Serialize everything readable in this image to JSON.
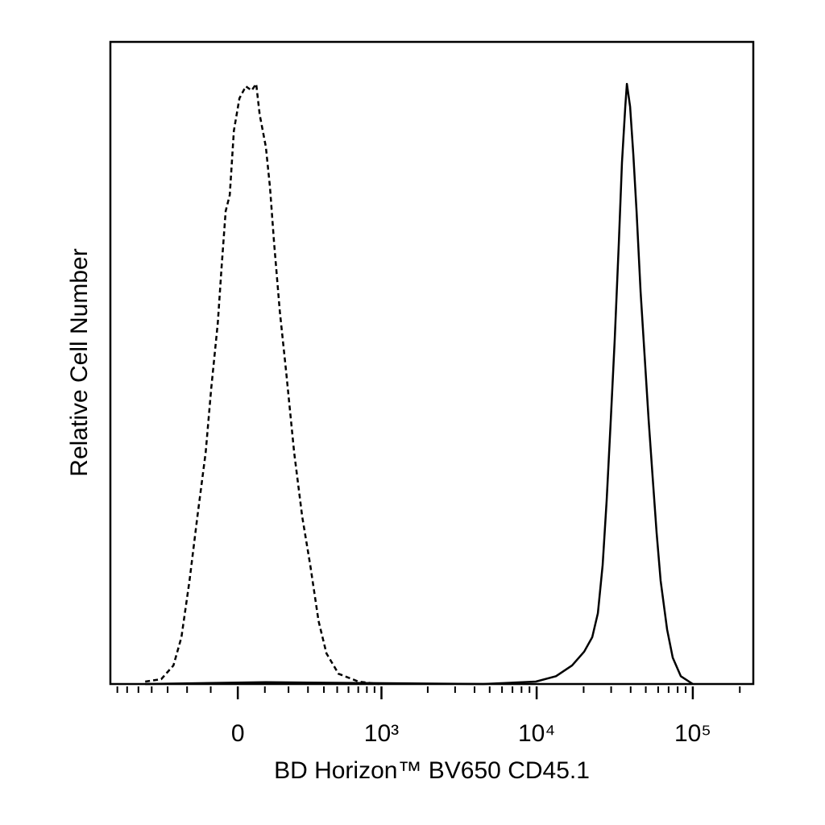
{
  "chart_data": {
    "type": "line",
    "xlabel": "BD Horizon™ BV650 CD45.1",
    "ylabel": "Relative Cell Number",
    "xscale": "biexponential",
    "xlim": [
      -780,
      244000
    ],
    "ylim": [
      0,
      107
    ],
    "xticks": [
      {
        "value": 0,
        "label": "0"
      },
      {
        "value": 1000,
        "label": "10³"
      },
      {
        "value": 10000,
        "label": "10⁴"
      },
      {
        "value": 100000,
        "label": "10⁵"
      }
    ],
    "xminorticks": [
      -700,
      -600,
      -500,
      -400,
      -300,
      -200,
      -100,
      100,
      200,
      300,
      400,
      500,
      600,
      700,
      800,
      900,
      2000,
      3000,
      4000,
      5000,
      6000,
      7000,
      8000,
      9000,
      20000,
      30000,
      40000,
      50000,
      60000,
      70000,
      80000,
      90000,
      200000
    ],
    "series": [
      {
        "style": "dashed",
        "color": "#000000",
        "x": [
          -447,
          -338,
          -268,
          -227,
          -189,
          -154,
          -120,
          -98,
          -73,
          -59,
          -44,
          -29,
          -14,
          6,
          29,
          50,
          67,
          80,
          104,
          120,
          137,
          161,
          189,
          227,
          268,
          313,
          364,
          418,
          511,
          703,
          959
        ],
        "values": [
          0.4,
          0.8,
          3.1,
          7.8,
          17.2,
          27.9,
          38.6,
          49.3,
          60.1,
          69.4,
          78.8,
          81.5,
          92.2,
          97.6,
          99.6,
          98.9,
          100,
          94.9,
          89.5,
          82.8,
          73.5,
          62.1,
          52.0,
          38.6,
          27.9,
          19.8,
          10.5,
          5.1,
          1.7,
          0.4,
          0
        ]
      },
      {
        "style": "solid",
        "color": "#000000",
        "x": [
          -447,
          104,
          4563,
          9882,
          13300,
          16860,
          20150,
          22690,
          24670,
          26470,
          28090,
          29820,
          31630,
          33580,
          35200,
          36940,
          37820,
          39670,
          41600,
          43630,
          46290,
          49110,
          52120,
          55270,
          58680,
          62220,
          68440,
          74380,
          83770,
          100000
        ],
        "values": [
          0,
          0.3,
          0,
          0.4,
          1.3,
          3.1,
          5.4,
          7.8,
          11.8,
          19.8,
          30.6,
          44.0,
          57.4,
          73.5,
          86.9,
          96.2,
          100,
          96.2,
          88.2,
          78.8,
          65.4,
          54.7,
          44.0,
          34.6,
          25.2,
          17.2,
          9.1,
          4.4,
          1.3,
          0
        ]
      }
    ]
  }
}
